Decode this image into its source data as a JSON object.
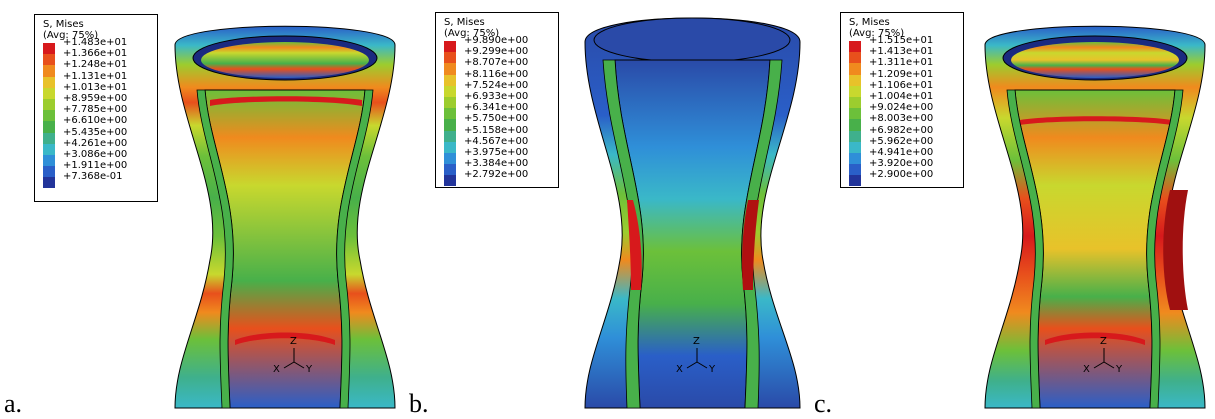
{
  "panels": [
    {
      "letter": "a.",
      "legend": {
        "title": "S, Mises",
        "subtitle": "(Avg: 75%)",
        "values": [
          "+1.483e+01",
          "+1.366e+01",
          "+1.248e+01",
          "+1.131e+01",
          "+1.013e+01",
          "+8.959e+00",
          "+7.785e+00",
          "+6.610e+00",
          "+5.435e+00",
          "+4.261e+00",
          "+3.086e+00",
          "+1.911e+00",
          "+7.368e-01"
        ]
      },
      "triad": {
        "z": "Z",
        "x": "X",
        "y": "Y"
      }
    },
    {
      "letter": "b.",
      "legend": {
        "title": "S, Mises",
        "subtitle": "(Avg: 75%)",
        "values": [
          "+9.890e+00",
          "+9.299e+00",
          "+8.707e+00",
          "+8.116e+00",
          "+7.524e+00",
          "+6.933e+00",
          "+6.341e+00",
          "+5.750e+00",
          "+5.158e+00",
          "+4.567e+00",
          "+3.975e+00",
          "+3.384e+00",
          "+2.792e+00"
        ]
      },
      "triad": {
        "z": "Z",
        "x": "X",
        "y": "Y"
      }
    },
    {
      "letter": "c.",
      "legend": {
        "title": "S, Mises",
        "subtitle": "(Avg: 75%)",
        "values": [
          "+1.515e+01",
          "+1.413e+01",
          "+1.311e+01",
          "+1.209e+01",
          "+1.106e+01",
          "+1.004e+01",
          "+9.024e+00",
          "+8.003e+00",
          "+6.982e+00",
          "+5.962e+00",
          "+4.941e+00",
          "+3.920e+00",
          "+2.900e+00"
        ]
      },
      "triad": {
        "z": "Z",
        "x": "X",
        "y": "Y"
      }
    }
  ],
  "colormap": [
    "#d7191c",
    "#e8501c",
    "#f08a1e",
    "#e8c22a",
    "#c8d82e",
    "#9ccd2e",
    "#6cc03a",
    "#48b04a",
    "#3fb08c",
    "#3ab8c8",
    "#2f8fd8",
    "#2a5fc8",
    "#22349a"
  ]
}
